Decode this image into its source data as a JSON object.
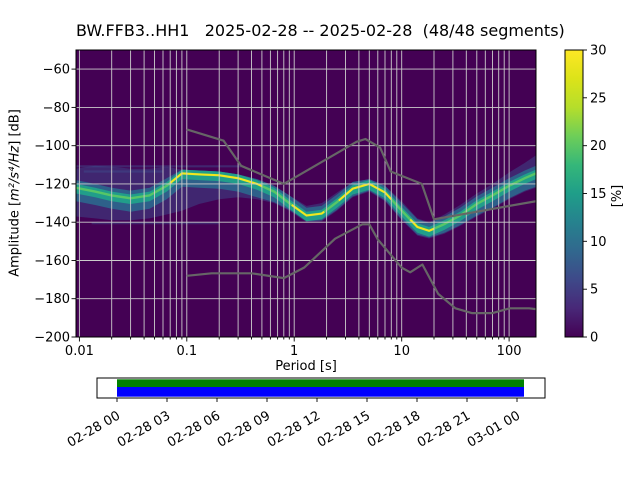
{
  "figure": {
    "title": "BW.FFB3..HH1   2025-02-28 -- 2025-02-28  (48/48 segments)",
    "xlabel": "Period [s]",
    "ylabel": {
      "prefix": "Amplitude [",
      "math": "m²/s⁴/Hz",
      "suffix": "] [dB]"
    },
    "colorbar_label": "[%]"
  },
  "chart_data": {
    "type": "heatmap",
    "title": "BW.FFB3..HH1   2025-02-28 -- 2025-02-28  (48/48 segments)",
    "station": "BW.FFB3..HH1",
    "date_range": "2025-02-28 -- 2025-02-28",
    "segments_used": "48/48",
    "xlabel": "Period [s]",
    "ylabel": "Amplitude [m²/s⁴/Hz] [dB]",
    "xscale": "log",
    "xlim": [
      0.0093,
      178
    ],
    "ylim": [
      -200,
      -50
    ],
    "x_ticks": [
      0.01,
      0.1,
      1,
      10,
      100
    ],
    "x_tick_labels": [
      "0.01",
      "0.1",
      "1",
      "10",
      "100"
    ],
    "y_ticks": [
      -60,
      -80,
      -100,
      -120,
      -140,
      -160,
      -180,
      -200
    ],
    "y_tick_labels": [
      "−60",
      "−80",
      "−100",
      "−120",
      "−140",
      "−160",
      "−180",
      "−200"
    ],
    "grid": true,
    "colorbar": {
      "label": "[%]",
      "range": [
        0,
        30
      ],
      "ticks": [
        0,
        5,
        10,
        15,
        20,
        25,
        30
      ],
      "colormap": "viridis",
      "viridis_stops": [
        "#440154",
        "#482878",
        "#3e4989",
        "#31688e",
        "#26828e",
        "#1f9e89",
        "#35b779",
        "#6ece58",
        "#b5de2b",
        "#dce319",
        "#fde725"
      ]
    },
    "styles": {
      "background_value_color": "#440154",
      "grid_color": "#cccccc",
      "noise_model_color": "#666666",
      "band_outer": "#3b4c8c",
      "band_mid": "#2c6b8e",
      "band_inner": "#219e8a",
      "mode_line": "#56c667",
      "mode_bright": "#f4e61e"
    },
    "psd_band": {
      "periods_s": [
        0.0093,
        0.014,
        0.02,
        0.03,
        0.045,
        0.065,
        0.09,
        0.13,
        0.2,
        0.3,
        0.45,
        0.65,
        0.9,
        1.3,
        1.8,
        2.5,
        3.5,
        5,
        7,
        10,
        14,
        18,
        25,
        35,
        50,
        70,
        100,
        140,
        178
      ],
      "db_mode": [
        -122,
        -124,
        -126,
        -127.5,
        -126,
        -121,
        -114.5,
        -115,
        -115.5,
        -117,
        -120,
        -124,
        -130,
        -136.5,
        -135.5,
        -129.5,
        -122.5,
        -120,
        -124.5,
        -134,
        -142.5,
        -144.5,
        -141,
        -136.5,
        -130.5,
        -126,
        -121,
        -117,
        -114.5
      ],
      "db_upper": [
        -112,
        -110.5,
        -111,
        -112,
        -112,
        -111,
        -112.5,
        -113,
        -113.5,
        -115,
        -117.5,
        -121,
        -126,
        -131.5,
        -130,
        -124.5,
        -119,
        -117.5,
        -121,
        -129,
        -138,
        -140,
        -136,
        -131,
        -125,
        -120,
        -114,
        -109,
        -105
      ],
      "db_lower": [
        -137,
        -138,
        -139,
        -139,
        -138,
        -136,
        -134,
        -130.5,
        -128,
        -127,
        -128,
        -130,
        -134,
        -140,
        -139.5,
        -134,
        -127,
        -124,
        -129,
        -139,
        -147,
        -148.5,
        -146,
        -142,
        -137,
        -133,
        -128,
        -124,
        -122
      ]
    },
    "bright_mode_segments_s": [
      [
        0.07,
        0.5
      ],
      [
        0.95,
        1.9
      ],
      [
        2.6,
        8
      ],
      [
        12,
        20
      ]
    ],
    "faint_streaks": [
      {
        "periods_s": [
          0.0093,
          0.32
        ],
        "db": -110.8
      },
      {
        "periods_s": [
          0.011,
          0.06
        ],
        "db": -113.5
      },
      {
        "periods_s": [
          0.013,
          0.2
        ],
        "db": -140.5
      }
    ],
    "noise_models": {
      "nhnm": [
        [
          0.1,
          -91.5
        ],
        [
          0.22,
          -97.4
        ],
        [
          0.32,
          -110.5
        ],
        [
          0.8,
          -120.0
        ],
        [
          3.8,
          -98.0
        ],
        [
          4.6,
          -96.5
        ],
        [
          6.3,
          -101.0
        ],
        [
          7.9,
          -113.5
        ],
        [
          15.4,
          -120.0
        ],
        [
          20.0,
          -138.5
        ],
        [
          178.0,
          -129.0
        ]
      ],
      "nlnm": [
        [
          0.1,
          -168.0
        ],
        [
          0.17,
          -166.7
        ],
        [
          0.4,
          -166.7
        ],
        [
          0.8,
          -169.2
        ],
        [
          1.24,
          -163.7
        ],
        [
          2.4,
          -148.6
        ],
        [
          4.3,
          -141.1
        ],
        [
          5.0,
          -141.1
        ],
        [
          6.0,
          -149.0
        ],
        [
          10.0,
          -163.8
        ],
        [
          12.0,
          -166.2
        ],
        [
          15.6,
          -162.1
        ],
        [
          21.9,
          -177.5
        ],
        [
          31.6,
          -185.0
        ],
        [
          45.0,
          -187.5
        ],
        [
          70.0,
          -187.5
        ],
        [
          101.0,
          -185.0
        ],
        [
          154.0,
          -185.0
        ],
        [
          178.0,
          -185.4
        ]
      ]
    },
    "timeline": {
      "tick_labels": [
        "02-28 00",
        "02-28 03",
        "02-28 06",
        "02-28 09",
        "02-28 12",
        "02-28 15",
        "02-28 18",
        "02-28 21",
        "03-01 00"
      ],
      "coverage_color_top": "#008000",
      "coverage_color_bottom": "#0000ff",
      "frame_fill": "#ffffff"
    }
  }
}
